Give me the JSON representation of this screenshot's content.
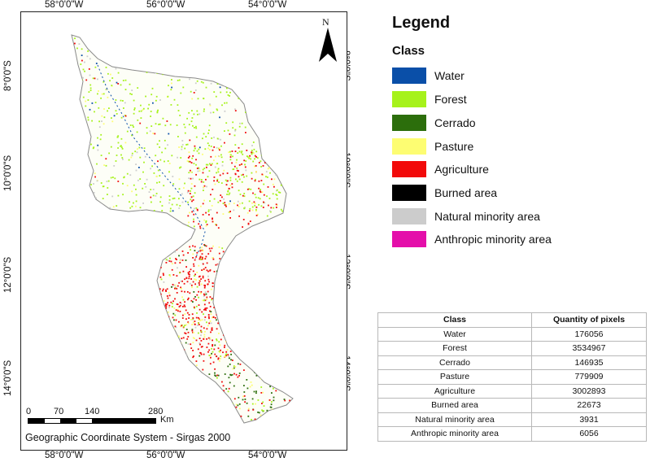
{
  "map": {
    "graticule_top": [
      "58°0'0\"W",
      "56°0'0\"W",
      "54°0'0\"W"
    ],
    "graticule_bottom": [
      "58°0'0\"W",
      "56°0'0\"W",
      "54°0'0\"W"
    ],
    "graticule_left": [
      "8°0'0\"S",
      "10°0'0\"S",
      "12°0'0\"S",
      "14°0'0\"S"
    ],
    "graticule_right": [
      "8°0'0\"S",
      "10°0'0\"S",
      "12°0'0\"S",
      "14°0'0\"S"
    ],
    "north_label": "N",
    "scale_labels": [
      "0",
      "70",
      "140",
      "280"
    ],
    "scale_unit": "Km",
    "coordinate_system": "Geographic Coordinate System - Sirgas 2000"
  },
  "legend": {
    "title": "Legend",
    "subtitle": "Class",
    "items": [
      {
        "label": "Water",
        "color": "#0a4fa8"
      },
      {
        "label": "Forest",
        "color": "#a6f21b"
      },
      {
        "label": "Cerrado",
        "color": "#2c6e0c"
      },
      {
        "label": "Pasture",
        "color": "#fdfd72"
      },
      {
        "label": "Agriculture",
        "color": "#f20b0b"
      },
      {
        "label": "Burned area",
        "color": "#000000"
      },
      {
        "label": "Natural minority area",
        "color": "#cccccc"
      },
      {
        "label": "Anthropic minority area",
        "color": "#e40faa"
      }
    ]
  },
  "table": {
    "headers": [
      "Class",
      "Quantity of pixels"
    ],
    "rows": [
      [
        "Water",
        "176056"
      ],
      [
        "Forest",
        "3534967"
      ],
      [
        "Cerrado",
        "146935"
      ],
      [
        "Pasture",
        "779909"
      ],
      [
        "Agriculture",
        "3002893"
      ],
      [
        "Burned area",
        "22673"
      ],
      [
        "Natural minority area",
        "3931"
      ],
      [
        "Anthropic minority area",
        "6056"
      ]
    ]
  }
}
